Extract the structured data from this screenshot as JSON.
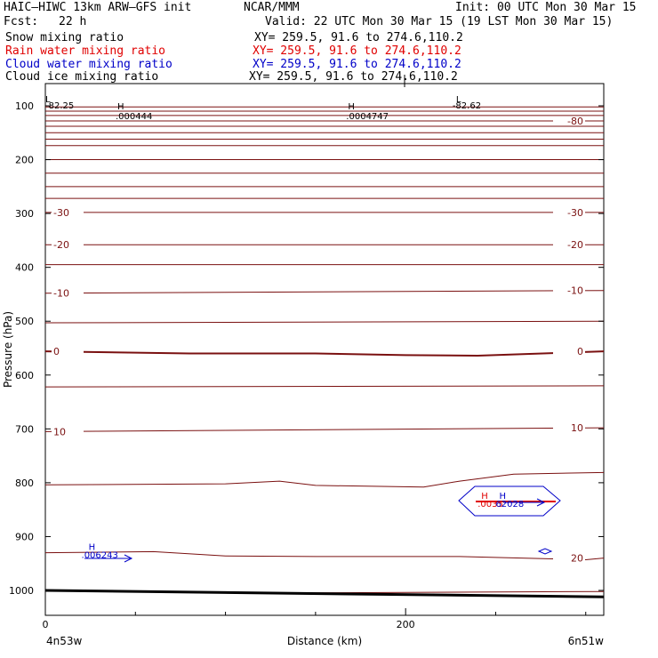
{
  "header": {
    "model": "HAIC–HIWC 13km ARW–GFS init",
    "center": "NCAR/MMM",
    "init": "Init: 00 UTC Mon 30 Mar 15",
    "fcst_label": "Fcst:",
    "fcst_value": "22 h",
    "valid": "Valid: 22 UTC Mon 30 Mar 15 (19 LST Mon 30 Mar 15)"
  },
  "fields": [
    {
      "name": "Snow mixing ratio",
      "xy": "XY= 259.5, 91.6 to 274.6,110.2",
      "color": "#000000"
    },
    {
      "name": "Rain water mixing ratio",
      "xy": "XY= 259.5, 91.6 to 274.6,110.2",
      "color": "#e00000"
    },
    {
      "name": "Cloud water mixing ratio",
      "xy": "XY= 259.5, 91.6 to 274.6,110.2",
      "color": "#0000c8"
    },
    {
      "name": "Cloud ice mixing ratio",
      "xy": "XY= 259.5, 91.6 to 274.6,110.2",
      "color": "#000000"
    }
  ],
  "chart_data": {
    "type": "contour-cross-section",
    "ylabel": "Pressure (hPa)",
    "xlabel": "Distance (km)",
    "x_start_label": "4n53w",
    "x_end_label": "6n51w",
    "xlim": [
      0,
      310
    ],
    "ylim": [
      1050,
      50
    ],
    "x_ticks": [
      0,
      200
    ],
    "x_minor_ticks": [
      50,
      100,
      150,
      250,
      300
    ],
    "y_ticks": [
      100,
      200,
      300,
      400,
      500,
      600,
      700,
      800,
      900,
      1000
    ],
    "contour_color": "#7a1010",
    "isotherms": [
      {
        "label": "-80",
        "x": [
          0,
          310
        ],
        "p": [
          128,
          128
        ],
        "label_right": true
      },
      {
        "label": "",
        "x": [
          0,
          310
        ],
        "p": [
          102,
          102
        ]
      },
      {
        "label": "",
        "x": [
          0,
          310
        ],
        "p": [
          110,
          110
        ]
      },
      {
        "label": "",
        "x": [
          0,
          310
        ],
        "p": [
          118,
          118
        ]
      },
      {
        "label": "",
        "x": [
          0,
          310
        ],
        "p": [
          138,
          138
        ]
      },
      {
        "label": "",
        "x": [
          0,
          310
        ],
        "p": [
          150,
          150
        ]
      },
      {
        "label": "",
        "x": [
          0,
          310
        ],
        "p": [
          162,
          162
        ]
      },
      {
        "label": "",
        "x": [
          0,
          310
        ],
        "p": [
          174,
          174
        ]
      },
      {
        "label": "",
        "x": [
          0,
          310
        ],
        "p": [
          200,
          200
        ]
      },
      {
        "label": "",
        "x": [
          0,
          310
        ],
        "p": [
          225,
          225
        ]
      },
      {
        "label": "",
        "x": [
          0,
          310
        ],
        "p": [
          250,
          250
        ]
      },
      {
        "label": "",
        "x": [
          0,
          310
        ],
        "p": [
          272,
          272
        ]
      },
      {
        "label": "-30",
        "x": [
          0,
          310
        ],
        "p": [
          298,
          298
        ],
        "label_left": true,
        "label_right": true
      },
      {
        "label": "-20",
        "x": [
          0,
          310
        ],
        "p": [
          358,
          358
        ],
        "label_left": true,
        "label_right": true
      },
      {
        "label": "",
        "x": [
          0,
          310
        ],
        "p": [
          395,
          395
        ]
      },
      {
        "label": "-10",
        "x": [
          0,
          310
        ],
        "p": [
          448,
          443
        ],
        "label_left": true,
        "label_right": true
      },
      {
        "label": "",
        "x": [
          0,
          310
        ],
        "p": [
          503,
          500
        ]
      },
      {
        "label": "0",
        "x": [
          0,
          80,
          150,
          200,
          240,
          310
        ],
        "p": [
          556,
          560,
          560,
          563,
          564,
          556
        ],
        "label_left": true,
        "label_right": true,
        "bold": true
      },
      {
        "label": "",
        "x": [
          0,
          310
        ],
        "p": [
          622,
          620
        ]
      },
      {
        "label": "10",
        "x": [
          0,
          310
        ],
        "p": [
          705,
          698
        ],
        "label_left": true,
        "label_right": true
      },
      {
        "label": "",
        "x": [
          0,
          100,
          130,
          150,
          210,
          230,
          260,
          310
        ],
        "p": [
          804,
          802,
          797,
          805,
          808,
          797,
          784,
          781
        ]
      },
      {
        "label": "20",
        "x": [
          0,
          60,
          100,
          150,
          230,
          300,
          310
        ],
        "p": [
          930,
          928,
          936,
          937,
          937,
          943,
          940
        ],
        "label_right": true
      }
    ],
    "surface_line": {
      "x": [
        0,
        310
      ],
      "p": [
        1000,
        1012
      ]
    },
    "extra_lines": [
      {
        "x": [
          120,
          310
        ],
        "p": [
          1005,
          1002
        ]
      }
    ],
    "labels": [
      {
        "text": "L",
        "x": 0,
        "p": 93,
        "color": "#000000"
      },
      {
        "text": "-82.25",
        "x": 0,
        "p": 105,
        "color": "#000000"
      },
      {
        "text": "H",
        "x": 40,
        "p": 107,
        "color": "#000000"
      },
      {
        "text": ".000444",
        "x": 39,
        "p": 125,
        "color": "#000000"
      },
      {
        "text": "H",
        "x": 168,
        "p": 107,
        "color": "#000000"
      },
      {
        "text": ".0004747",
        "x": 167,
        "p": 125,
        "color": "#000000"
      },
      {
        "text": "L",
        "x": 228,
        "p": 93,
        "color": "#000000"
      },
      {
        "text": "-82.62",
        "x": 226,
        "p": 105,
        "color": "#000000"
      },
      {
        "text": "H",
        "x": 24,
        "p": 925,
        "color": "#0000c8"
      },
      {
        "text": ".006243",
        "x": 20,
        "p": 940,
        "color": "#0000c8"
      },
      {
        "text": "H",
        "x": 242,
        "p": 830,
        "color": "#e00000"
      },
      {
        "text": "H",
        "x": 252,
        "p": 830,
        "color": "#0000c8"
      },
      {
        "text": ".0035",
        "x": 240,
        "p": 845,
        "color": "#e00000"
      },
      {
        "text": "62028",
        "x": 250,
        "p": 845,
        "color": "#0000c8"
      }
    ]
  }
}
